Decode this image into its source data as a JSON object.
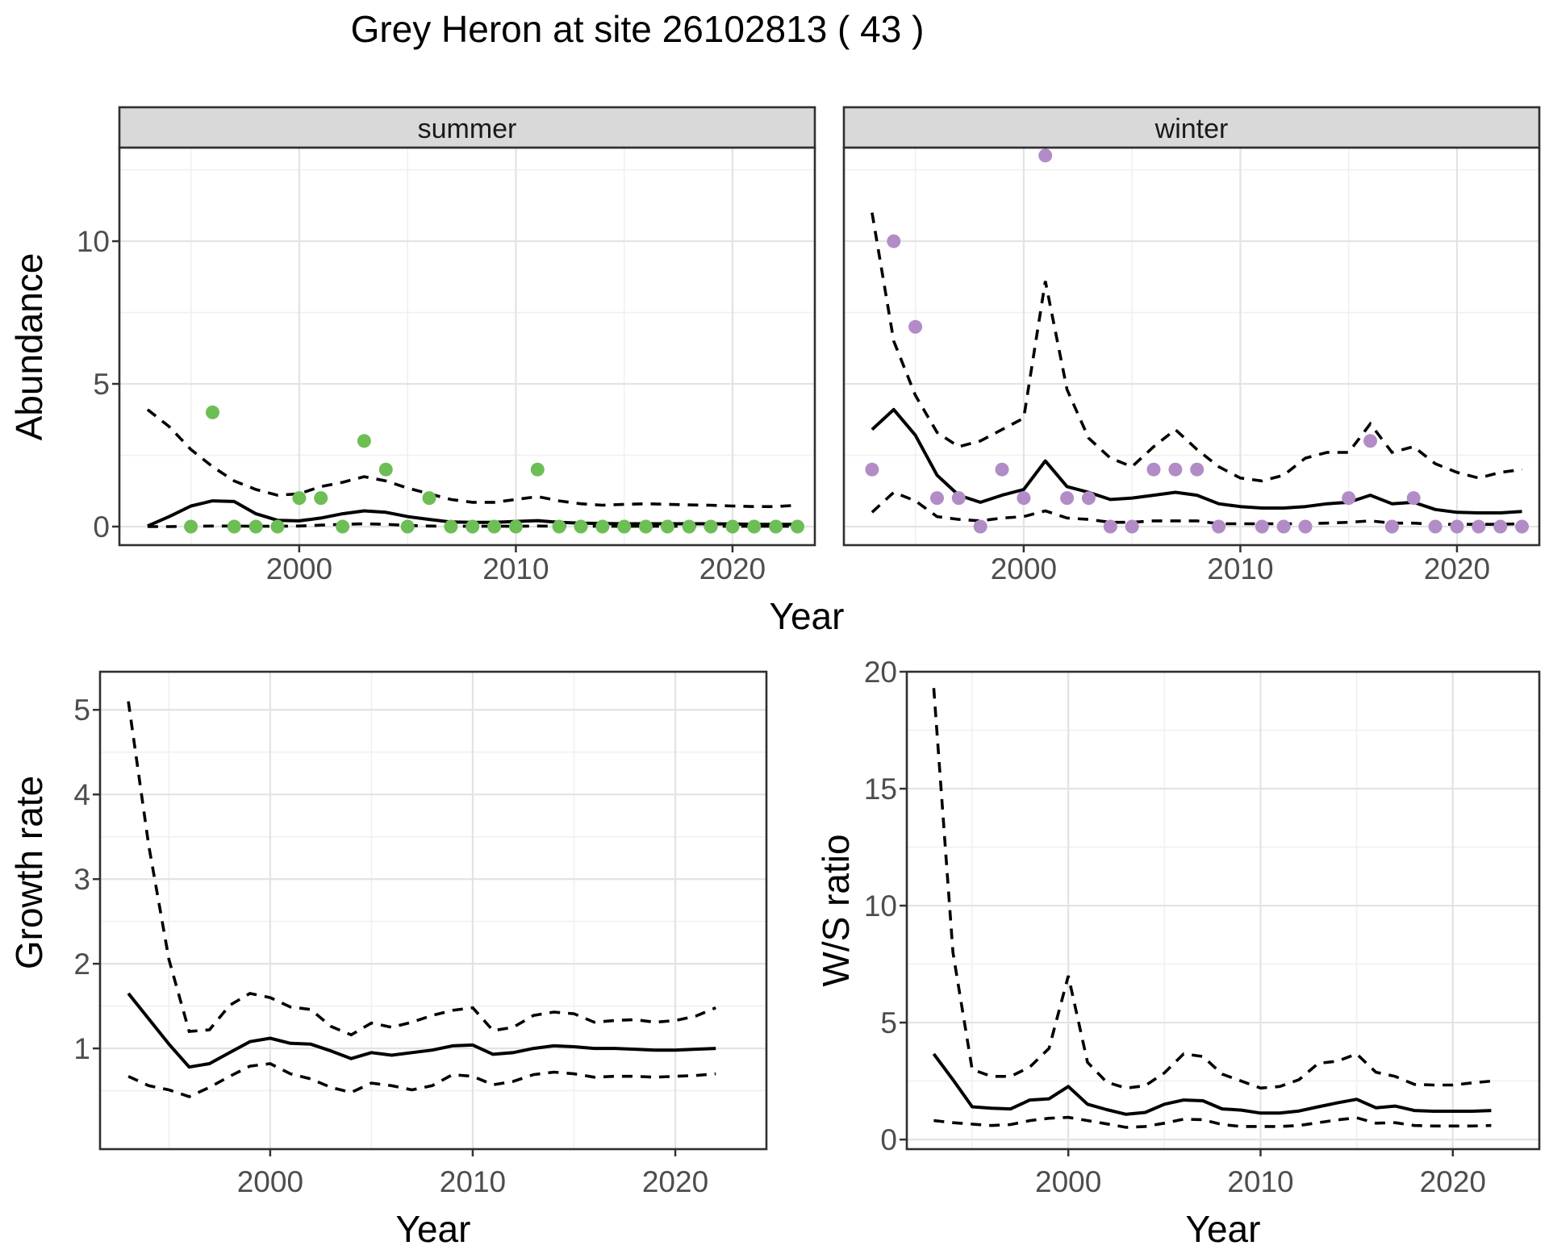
{
  "title": "Grey Heron at site 26102813 ( 43 )",
  "axes": {
    "abundance_label": "Abundance",
    "year_label": "Year",
    "growth_label": "Growth rate",
    "ws_label": "W/S ratio"
  },
  "facets": {
    "summer": "summer",
    "winter": "winter"
  },
  "colors": {
    "summer_point": "#6CBE55",
    "winter_point": "#B28CC6",
    "line": "#000000",
    "grid_major": "#E3E3E3",
    "grid_minor": "#F0F0F0",
    "panel_border": "#2F2F2F",
    "strip_bg": "#D9D9D9",
    "tick_text": "#4D4D4D"
  },
  "chart_data": [
    {
      "id": "abundance-summer",
      "type": "scatter",
      "facet": "summer",
      "xlabel": "Year",
      "ylabel": "Abundance",
      "xlim": [
        1991.7,
        2023.8
      ],
      "ylim": [
        -0.65,
        13.28
      ],
      "x_ticks": [
        2000,
        2010,
        2020
      ],
      "x_minor": [
        1995,
        2005,
        2015
      ],
      "y_ticks": [
        0,
        5,
        10
      ],
      "y_minor": [
        2.5,
        7.5,
        12.5
      ],
      "grid": true,
      "point_color": "#6CBE55",
      "points": [
        [
          1995,
          0
        ],
        [
          1996,
          4
        ],
        [
          1997,
          0
        ],
        [
          1998,
          0
        ],
        [
          1999,
          0
        ],
        [
          2000,
          1
        ],
        [
          2001,
          1
        ],
        [
          2002,
          0
        ],
        [
          2003,
          3
        ],
        [
          2004,
          2
        ],
        [
          2005,
          0
        ],
        [
          2006,
          1
        ],
        [
          2007,
          0
        ],
        [
          2008,
          0
        ],
        [
          2009,
          0
        ],
        [
          2010,
          0
        ],
        [
          2011,
          2
        ],
        [
          2012,
          0
        ],
        [
          2013,
          0
        ],
        [
          2014,
          0
        ],
        [
          2015,
          0
        ],
        [
          2016,
          0
        ],
        [
          2017,
          0
        ],
        [
          2018,
          0
        ],
        [
          2019,
          0
        ],
        [
          2020,
          0
        ],
        [
          2021,
          0
        ],
        [
          2022,
          0
        ],
        [
          2023,
          0
        ]
      ],
      "fit": {
        "start": 1993,
        "values": [
          0.02,
          0.35,
          0.72,
          0.9,
          0.88,
          0.45,
          0.22,
          0.2,
          0.3,
          0.45,
          0.55,
          0.5,
          0.35,
          0.25,
          0.16,
          0.15,
          0.15,
          0.18,
          0.21,
          0.15,
          0.12,
          0.11,
          0.1,
          0.1,
          0.1,
          0.1,
          0.1,
          0.09,
          0.08,
          0.08,
          0.08
        ]
      },
      "upper": {
        "start": 1993,
        "values": [
          4.1,
          3.5,
          2.7,
          2.1,
          1.6,
          1.3,
          1.1,
          1.15,
          1.4,
          1.55,
          1.75,
          1.6,
          1.35,
          1.15,
          0.95,
          0.85,
          0.85,
          0.95,
          1.05,
          0.9,
          0.8,
          0.75,
          0.78,
          0.8,
          0.78,
          0.76,
          0.75,
          0.72,
          0.7,
          0.7,
          0.75
        ]
      },
      "lower": {
        "start": 1993,
        "values": [
          0.0,
          0.0,
          0.01,
          0.02,
          0.02,
          0.01,
          0.01,
          0.02,
          0.05,
          0.08,
          0.1,
          0.08,
          0.04,
          0.02,
          0.01,
          0.01,
          0.01,
          0.01,
          0.02,
          0.01,
          0.01,
          0.01,
          0.01,
          0.01,
          0.01,
          0.01,
          0.01,
          0.01,
          0.01,
          0.01,
          0.01
        ]
      }
    },
    {
      "id": "abundance-winter",
      "type": "scatter",
      "facet": "winter",
      "xlabel": "Year",
      "ylabel": "Abundance",
      "xlim": [
        1991.7,
        2023.8
      ],
      "ylim": [
        -0.65,
        13.28
      ],
      "x_ticks": [
        2000,
        2010,
        2020
      ],
      "x_minor": [
        1995,
        2005,
        2015
      ],
      "y_ticks": [
        0,
        5,
        10
      ],
      "y_minor": [
        2.5,
        7.5,
        12.5
      ],
      "grid": true,
      "point_color": "#B28CC6",
      "points": [
        [
          1993,
          2
        ],
        [
          1994,
          10
        ],
        [
          1995,
          7
        ],
        [
          1996,
          1
        ],
        [
          1997,
          1
        ],
        [
          1998,
          0
        ],
        [
          1999,
          2
        ],
        [
          2000,
          1
        ],
        [
          2001,
          13
        ],
        [
          2002,
          1
        ],
        [
          2003,
          1
        ],
        [
          2004,
          0
        ],
        [
          2005,
          0
        ],
        [
          2006,
          2
        ],
        [
          2007,
          2
        ],
        [
          2008,
          2
        ],
        [
          2009,
          0
        ],
        [
          2011,
          0
        ],
        [
          2012,
          0
        ],
        [
          2013,
          0
        ],
        [
          2015,
          1
        ],
        [
          2016,
          3
        ],
        [
          2017,
          0
        ],
        [
          2018,
          1
        ],
        [
          2019,
          0
        ],
        [
          2020,
          0
        ],
        [
          2021,
          0
        ],
        [
          2022,
          0
        ],
        [
          2023,
          0
        ]
      ],
      "fit": {
        "start": 1993,
        "values": [
          3.4,
          4.1,
          3.2,
          1.8,
          1.1,
          0.85,
          1.1,
          1.3,
          2.3,
          1.4,
          1.2,
          0.95,
          1.0,
          1.1,
          1.2,
          1.1,
          0.8,
          0.7,
          0.65,
          0.65,
          0.7,
          0.8,
          0.85,
          1.1,
          0.8,
          0.85,
          0.6,
          0.5,
          0.48,
          0.48,
          0.53
        ]
      },
      "upper": {
        "start": 1993,
        "values": [
          11.0,
          6.5,
          4.6,
          3.3,
          2.8,
          3.0,
          3.4,
          3.8,
          8.6,
          4.8,
          3.1,
          2.4,
          2.1,
          2.8,
          3.4,
          2.7,
          2.1,
          1.7,
          1.6,
          1.8,
          2.4,
          2.6,
          2.6,
          3.6,
          2.6,
          2.8,
          2.2,
          1.9,
          1.7,
          1.9,
          2.0
        ]
      },
      "lower": {
        "start": 1993,
        "values": [
          0.5,
          1.2,
          0.9,
          0.35,
          0.25,
          0.2,
          0.3,
          0.35,
          0.55,
          0.3,
          0.25,
          0.15,
          0.15,
          0.2,
          0.2,
          0.2,
          0.1,
          0.1,
          0.1,
          0.1,
          0.1,
          0.12,
          0.15,
          0.2,
          0.12,
          0.12,
          0.08,
          0.08,
          0.08,
          0.08,
          0.1
        ]
      }
    },
    {
      "id": "growth-rate",
      "type": "line",
      "xlabel": "Year",
      "ylabel": "Growth rate",
      "xlim": [
        1991.6,
        2024.5
      ],
      "ylim": [
        -0.19,
        5.45
      ],
      "x_ticks": [
        2000,
        2010,
        2020
      ],
      "x_minor": [
        1995,
        2005,
        2015
      ],
      "y_ticks": [
        1,
        2,
        3,
        4,
        5
      ],
      "y_minor": [
        0.5,
        1.5,
        2.5,
        3.5,
        4.5
      ],
      "grid": true,
      "points": [],
      "fit": {
        "start": 1993,
        "values": [
          1.65,
          1.35,
          1.05,
          0.78,
          0.82,
          0.95,
          1.08,
          1.12,
          1.06,
          1.05,
          0.97,
          0.88,
          0.95,
          0.92,
          0.95,
          0.98,
          1.03,
          1.04,
          0.93,
          0.95,
          1.0,
          1.03,
          1.02,
          1.0,
          1.0,
          0.99,
          0.98,
          0.98,
          0.99,
          1.0
        ]
      },
      "upper": {
        "start": 1993,
        "values": [
          5.1,
          3.4,
          2.05,
          1.2,
          1.22,
          1.51,
          1.65,
          1.6,
          1.49,
          1.46,
          1.26,
          1.16,
          1.3,
          1.25,
          1.31,
          1.39,
          1.45,
          1.48,
          1.21,
          1.25,
          1.39,
          1.43,
          1.41,
          1.31,
          1.33,
          1.34,
          1.31,
          1.33,
          1.38,
          1.48
        ]
      },
      "lower": {
        "start": 1993,
        "values": [
          0.67,
          0.56,
          0.51,
          0.43,
          0.54,
          0.67,
          0.79,
          0.82,
          0.7,
          0.64,
          0.54,
          0.48,
          0.59,
          0.56,
          0.51,
          0.56,
          0.69,
          0.67,
          0.57,
          0.61,
          0.69,
          0.72,
          0.7,
          0.66,
          0.67,
          0.67,
          0.66,
          0.67,
          0.68,
          0.7
        ]
      }
    },
    {
      "id": "ws-ratio",
      "type": "line",
      "xlabel": "Year",
      "ylabel": "W/S ratio",
      "xlim": [
        1991.6,
        2024.5
      ],
      "ylim": [
        -0.41,
        20.0
      ],
      "x_ticks": [
        2000,
        2010,
        2020
      ],
      "x_minor": [
        1995,
        2005,
        2015
      ],
      "y_ticks": [
        0,
        5,
        10,
        15,
        20
      ],
      "y_minor": [
        2.5,
        7.5,
        12.5,
        17.5
      ],
      "grid": true,
      "points": [],
      "fit": {
        "start": 1993,
        "values": [
          3.66,
          2.56,
          1.4,
          1.34,
          1.31,
          1.69,
          1.74,
          2.27,
          1.51,
          1.28,
          1.08,
          1.16,
          1.51,
          1.69,
          1.66,
          1.31,
          1.26,
          1.13,
          1.13,
          1.22,
          1.4,
          1.57,
          1.72,
          1.36,
          1.43,
          1.24,
          1.21,
          1.21,
          1.21,
          1.24
        ]
      },
      "upper": {
        "start": 1993,
        "values": [
          19.3,
          8.0,
          3.0,
          2.7,
          2.7,
          3.1,
          3.9,
          7.0,
          3.3,
          2.45,
          2.2,
          2.3,
          2.85,
          3.66,
          3.55,
          2.8,
          2.5,
          2.2,
          2.27,
          2.56,
          3.26,
          3.35,
          3.66,
          2.88,
          2.7,
          2.36,
          2.33,
          2.33,
          2.42,
          2.5
        ]
      },
      "lower": {
        "start": 1993,
        "values": [
          0.81,
          0.72,
          0.66,
          0.6,
          0.64,
          0.81,
          0.91,
          0.95,
          0.81,
          0.67,
          0.52,
          0.56,
          0.7,
          0.87,
          0.85,
          0.64,
          0.56,
          0.56,
          0.56,
          0.6,
          0.72,
          0.84,
          0.93,
          0.7,
          0.72,
          0.6,
          0.58,
          0.58,
          0.58,
          0.6
        ]
      }
    }
  ]
}
